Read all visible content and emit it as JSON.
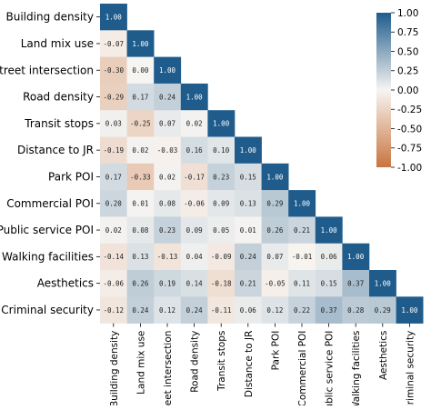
{
  "chart_data": {
    "type": "heatmap",
    "title": "",
    "xlabel": "",
    "ylabel": "",
    "layout": "lower-triangle",
    "variables": [
      "Building density",
      "Land mix use",
      "Street intersection",
      "Road density",
      "Transit stops",
      "Distance to JR",
      "Park POI",
      "Commercial POI",
      "Public service POI",
      "Walking facilities",
      "Aesthetics",
      "Criminal security"
    ],
    "values": [
      [
        1.0
      ],
      [
        -0.07,
        1.0
      ],
      [
        -0.3,
        0.0,
        1.0
      ],
      [
        -0.29,
        0.17,
        0.24,
        1.0
      ],
      [
        0.03,
        -0.25,
        0.07,
        0.02,
        1.0
      ],
      [
        -0.19,
        0.02,
        -0.03,
        0.16,
        0.1,
        1.0
      ],
      [
        0.17,
        -0.33,
        0.02,
        -0.17,
        0.23,
        0.15,
        1.0
      ],
      [
        0.2,
        0.01,
        0.08,
        -0.06,
        0.09,
        0.13,
        0.29,
        1.0
      ],
      [
        0.02,
        0.08,
        0.23,
        0.09,
        0.05,
        0.01,
        0.26,
        0.21,
        1.0
      ],
      [
        -0.14,
        0.13,
        -0.13,
        0.04,
        -0.09,
        0.24,
        0.07,
        -0.01,
        0.06,
        1.0
      ],
      [
        -0.06,
        0.26,
        0.19,
        0.14,
        -0.18,
        0.21,
        -0.05,
        0.11,
        0.15,
        0.37,
        1.0
      ],
      [
        -0.12,
        0.24,
        0.12,
        0.24,
        -0.11,
        0.06,
        0.12,
        0.22,
        0.37,
        0.28,
        0.29,
        1.0
      ]
    ],
    "cell_labels": [
      [
        "1.00"
      ],
      [
        "-0.07",
        "1.00"
      ],
      [
        "-0.30",
        "0.00",
        "1.00"
      ],
      [
        "-0.29",
        "0.17",
        "0.24",
        "1.00"
      ],
      [
        "0.03",
        "-0.25",
        "0.07",
        "0.02",
        "1.00"
      ],
      [
        "-0.19",
        "0.02",
        "-0.03",
        "0.16",
        "0.10",
        "1.00"
      ],
      [
        "0.17",
        "-0.33",
        "0.02",
        "-0.17",
        "0.23",
        "0.15",
        "1.00"
      ],
      [
        "0.20",
        "0.01",
        "0.08",
        "-0.06",
        "0.09",
        "0.13",
        "0.29",
        "1.00"
      ],
      [
        "0.02",
        "0.08",
        "0.23",
        "0.09",
        "0.05",
        "0.01",
        "0.26",
        "0.21",
        "1.00"
      ],
      [
        "-0.14",
        "0.13",
        "-0.13",
        "0.04",
        "-0.09",
        "0.24",
        "0.07",
        "-0.01",
        "0.06",
        "1.00"
      ],
      [
        "-0.06",
        "0.26",
        "0.19",
        "0.14",
        "-0.18",
        "0.21",
        "-0.05",
        "0.11",
        "0.15",
        "0.37",
        "1.00"
      ],
      [
        "-0.12",
        "0.24",
        "0.12",
        "0.24",
        "-0.11",
        "0.06",
        "0.12",
        "0.22",
        "0.37",
        "0.28",
        "0.29",
        "1.00"
      ]
    ],
    "colorbar": {
      "range": [
        -1.0,
        1.0
      ],
      "ticks": [
        1.0,
        0.75,
        0.5,
        0.25,
        0.0,
        -0.25,
        -0.5,
        -0.75,
        -1.0
      ],
      "tick_labels": [
        "1.00",
        "0.75",
        "0.50",
        "0.25",
        "0.00",
        "-0.25",
        "-0.50",
        "-0.75",
        "-1.00"
      ],
      "colors": {
        "negative": "#c9743f",
        "neutral": "#f7f5f2",
        "positive": "#1f5c8c"
      }
    },
    "grid": false,
    "legend": "colorbar-right"
  }
}
